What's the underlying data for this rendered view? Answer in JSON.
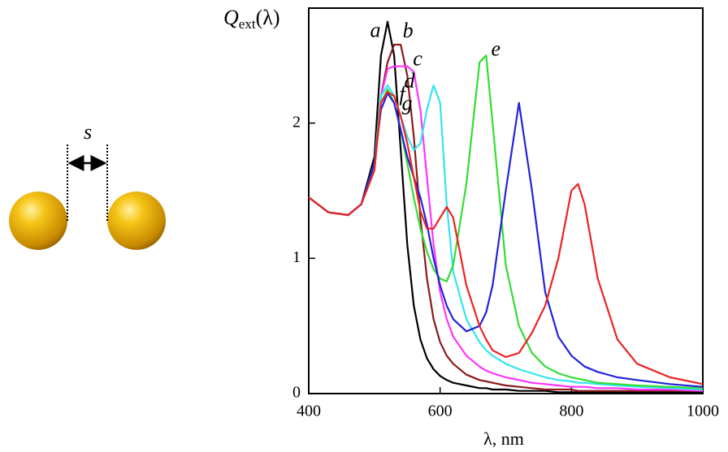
{
  "diagram": {
    "label": "s"
  },
  "chart_data": {
    "type": "line",
    "ylabel": [
      "Q",
      "ext",
      "(λ)"
    ],
    "xlabel": "λ, nm",
    "x": [
      400,
      430,
      460,
      480,
      500,
      510,
      520,
      530,
      540,
      550,
      560,
      570,
      580,
      590,
      600,
      610,
      620,
      640,
      660,
      670,
      680,
      700,
      720,
      740,
      760,
      780,
      800,
      810,
      820,
      840,
      870,
      900,
      950,
      1000
    ],
    "xlim": [
      400,
      1000
    ],
    "xticks": [
      400,
      600,
      800,
      1000
    ],
    "ylim": [
      0,
      2.85
    ],
    "yticks": [
      0,
      1,
      2
    ],
    "series": [
      {
        "name": "a",
        "color": "#000000",
        "values": [
          1.45,
          1.34,
          1.32,
          1.4,
          1.75,
          2.5,
          2.75,
          2.5,
          1.8,
          1.1,
          0.65,
          0.4,
          0.26,
          0.18,
          0.13,
          0.1,
          0.08,
          0.06,
          0.04,
          0.04,
          0.03,
          0.03,
          0.02,
          0.02,
          0.02,
          0.01,
          0.01,
          0.01,
          0.01,
          0.01,
          0.01,
          0.01,
          0.01,
          0.01
        ]
      },
      {
        "name": "b",
        "color": "#8b1a1a",
        "values": [
          1.45,
          1.34,
          1.32,
          1.4,
          1.7,
          2.2,
          2.45,
          2.58,
          2.58,
          2.35,
          1.9,
          1.3,
          0.85,
          0.55,
          0.38,
          0.28,
          0.22,
          0.14,
          0.1,
          0.09,
          0.08,
          0.06,
          0.05,
          0.04,
          0.03,
          0.03,
          0.03,
          0.02,
          0.02,
          0.02,
          0.02,
          0.02,
          0.02,
          0.02
        ]
      },
      {
        "name": "c",
        "color": "#ff33ff",
        "values": [
          1.45,
          1.34,
          1.32,
          1.4,
          1.7,
          2.2,
          2.4,
          2.42,
          2.42,
          2.42,
          2.38,
          2.1,
          1.6,
          1.1,
          0.75,
          0.55,
          0.42,
          0.28,
          0.2,
          0.17,
          0.15,
          0.12,
          0.1,
          0.08,
          0.07,
          0.06,
          0.05,
          0.05,
          0.05,
          0.04,
          0.04,
          0.03,
          0.03,
          0.02
        ]
      },
      {
        "name": "d",
        "color": "#33e5f0",
        "values": [
          1.45,
          1.34,
          1.32,
          1.4,
          1.7,
          2.2,
          2.28,
          2.2,
          2.05,
          1.9,
          1.8,
          1.85,
          2.1,
          2.28,
          2.15,
          1.4,
          0.9,
          0.55,
          0.38,
          0.32,
          0.28,
          0.22,
          0.18,
          0.15,
          0.12,
          0.1,
          0.09,
          0.08,
          0.08,
          0.07,
          0.06,
          0.05,
          0.04,
          0.03
        ]
      },
      {
        "name": "e",
        "color": "#33dd33",
        "values": [
          1.45,
          1.34,
          1.32,
          1.4,
          1.7,
          2.15,
          2.25,
          2.15,
          1.95,
          1.7,
          1.45,
          1.22,
          1.05,
          0.92,
          0.85,
          0.83,
          0.95,
          1.55,
          2.45,
          2.5,
          2.0,
          0.95,
          0.5,
          0.3,
          0.2,
          0.15,
          0.12,
          0.11,
          0.1,
          0.08,
          0.07,
          0.06,
          0.05,
          0.04
        ]
      },
      {
        "name": "f",
        "color": "#2222dd",
        "values": [
          1.45,
          1.34,
          1.32,
          1.4,
          1.7,
          2.1,
          2.22,
          2.15,
          1.95,
          1.75,
          1.6,
          1.45,
          1.25,
          1.0,
          0.8,
          0.65,
          0.55,
          0.46,
          0.5,
          0.6,
          0.8,
          1.5,
          2.15,
          1.5,
          0.75,
          0.42,
          0.28,
          0.24,
          0.2,
          0.16,
          0.12,
          0.1,
          0.07,
          0.05
        ]
      },
      {
        "name": "g",
        "color": "#ee2222",
        "values": [
          1.45,
          1.34,
          1.32,
          1.4,
          1.65,
          2.15,
          2.23,
          2.2,
          2.05,
          1.85,
          1.6,
          1.35,
          1.22,
          1.22,
          1.3,
          1.38,
          1.3,
          0.8,
          0.5,
          0.4,
          0.32,
          0.27,
          0.3,
          0.45,
          0.65,
          1.0,
          1.5,
          1.55,
          1.4,
          0.85,
          0.4,
          0.22,
          0.12,
          0.07
        ]
      }
    ]
  }
}
